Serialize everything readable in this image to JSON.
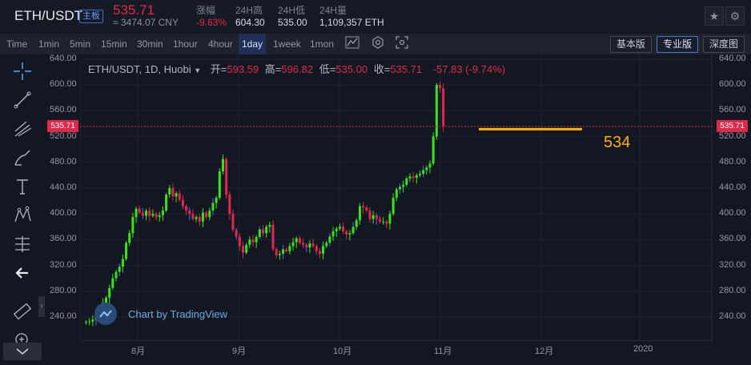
{
  "header": {
    "pair": "ETH/USDT",
    "badge": "主板",
    "price": "535.71",
    "cny": "≈ 3474.07 CNY",
    "stats": [
      {
        "label": "涨幅",
        "value": "-9.63%"
      },
      {
        "label": "24H高",
        "value": "604.30"
      },
      {
        "label": "24H低",
        "value": "535.00"
      },
      {
        "label": "24H量",
        "value": "1,109,357 ETH"
      }
    ],
    "icons": [
      "star-icon",
      "gear-icon"
    ]
  },
  "toolbar": {
    "timeframes": [
      "Time",
      "1min",
      "5min",
      "15min",
      "30min",
      "1hour",
      "4hour",
      "1day",
      "1week",
      "1mon"
    ],
    "active": "1day",
    "views": [
      "基本版",
      "专业版",
      "深度图"
    ],
    "active_view": "专业版"
  },
  "chart": {
    "legend_symbol": "ETH/USDT, 1D, Huobi",
    "open_label": "开=",
    "open": "593.59",
    "high_label": "高=",
    "high": "596.82",
    "low_label": "低=",
    "low": "535.00",
    "close_label": "收=",
    "close": "535.71",
    "change": "-57.83 (-9.74%)",
    "price_label": "535.71",
    "annotation": "534",
    "watermark": "Chart by TradingView",
    "colors": {
      "up": "#39e21b",
      "down": "#e0294a",
      "annotation": "#ffb000"
    }
  },
  "chart_data": {
    "type": "candlestick",
    "ylim": [
      220,
      645
    ],
    "yticks": [
      "640.00",
      "600.00",
      "560.00",
      "520.00",
      "480.00",
      "440.00",
      "400.00",
      "360.00",
      "320.00",
      "280.00",
      "240.00"
    ],
    "xticks": [
      "8月",
      "9月",
      "10月",
      "11月",
      "12月",
      "2020"
    ],
    "current_price": 535.71,
    "horizontal_line": 534,
    "closes": [
      232,
      233,
      236,
      240,
      250,
      262,
      270,
      285,
      300,
      310,
      318,
      330,
      355,
      370,
      395,
      408,
      402,
      397,
      405,
      397,
      400,
      395,
      398,
      405,
      430,
      440,
      427,
      432,
      422,
      412,
      405,
      400,
      392,
      395,
      388,
      402,
      395,
      405,
      417,
      425,
      466,
      485,
      430,
      400,
      375,
      365,
      350,
      340,
      352,
      360,
      356,
      364,
      376,
      370,
      380,
      383,
      345,
      336,
      338,
      345,
      342,
      350,
      356,
      362,
      355,
      352,
      348,
      354,
      350,
      342,
      338,
      350,
      355,
      365,
      373,
      377,
      380,
      373,
      368,
      370,
      380,
      390,
      412,
      410,
      405,
      392,
      398,
      392,
      388,
      388,
      385,
      400,
      425,
      438,
      442,
      445,
      455,
      458,
      456,
      460,
      462,
      468,
      472,
      478,
      520,
      600,
      595,
      536
    ]
  }
}
